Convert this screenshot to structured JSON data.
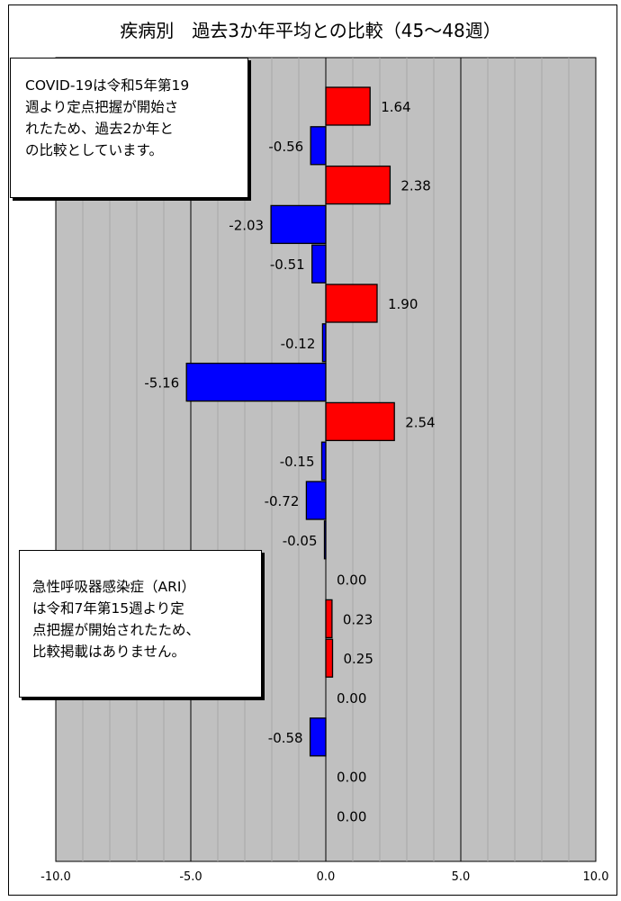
{
  "chart_data": {
    "type": "bar",
    "orientation": "horizontal",
    "title": "疾病別　過去3か年平均との比較（45～48週）",
    "xlim": [
      -10,
      10
    ],
    "xticks": [
      "-10.0",
      "-5.0",
      "0.0",
      "5.0",
      "10.0"
    ],
    "values": [
      1.64,
      -0.56,
      2.38,
      -2.03,
      -0.51,
      1.9,
      -0.12,
      -5.16,
      2.54,
      -0.15,
      -0.72,
      -0.05,
      0.0,
      0.23,
      0.25,
      0.0,
      -0.58,
      0.0,
      0.0
    ],
    "labels": [
      "1.64",
      "-0.56",
      "2.38",
      "-2.03",
      "-0.51",
      "1.90",
      "-0.12",
      "-5.16",
      "2.54",
      "-0.15",
      "-0.72",
      "-0.05",
      "0.00",
      "0.23",
      "0.25",
      "0.00",
      "-0.58",
      "0.00",
      "0.00"
    ],
    "positive_color": "#ff0000",
    "negative_color": "#0000ff",
    "plot_background": "#c0c0c0",
    "grid": true
  },
  "notes": {
    "covid": "COVID-19は令和5年第19\n週より定点把握が開始さ\nれたため、過去2か年と\nの比較としています。",
    "ari": "急性呼吸器感染症（ARI）\nは令和7年第15週より定\n点把握が開始されたため、\n比較掲載はありません。"
  }
}
